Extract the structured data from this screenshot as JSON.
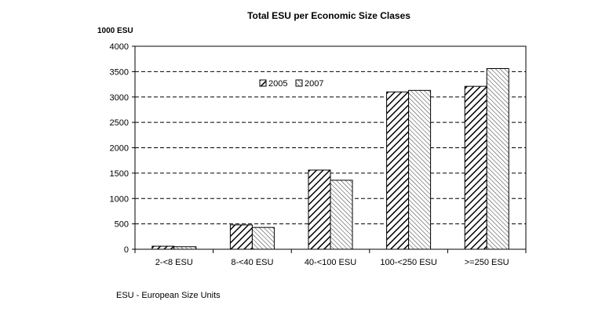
{
  "chart_data": {
    "type": "bar",
    "title": "Total ESU per Economic Size Clases",
    "ylabel": "1000 ESU",
    "xlabel": "",
    "categories": [
      "2-<8 ESU",
      "8-<40 ESU",
      "40-<100 ESU",
      "100-<250 ESU",
      ">=250 ESU"
    ],
    "series": [
      {
        "name": "2005",
        "values": [
          60,
          480,
          1560,
          3100,
          3210
        ],
        "pattern": "dense-diagonal-hatch"
      },
      {
        "name": "2007",
        "values": [
          50,
          430,
          1360,
          3130,
          3560
        ],
        "pattern": "light-diagonal-hatch"
      }
    ],
    "ylim": [
      0,
      4000
    ],
    "yticks": [
      0,
      500,
      1000,
      1500,
      2000,
      2500,
      3000,
      3500,
      4000
    ],
    "grid": "horizontal dashed",
    "legend_position": "top-center",
    "colors": {
      "bar_stroke": "#000000",
      "bar_fill": "#ffffff",
      "grid": "#000000"
    }
  },
  "footnote": "ESU - European Size Units"
}
